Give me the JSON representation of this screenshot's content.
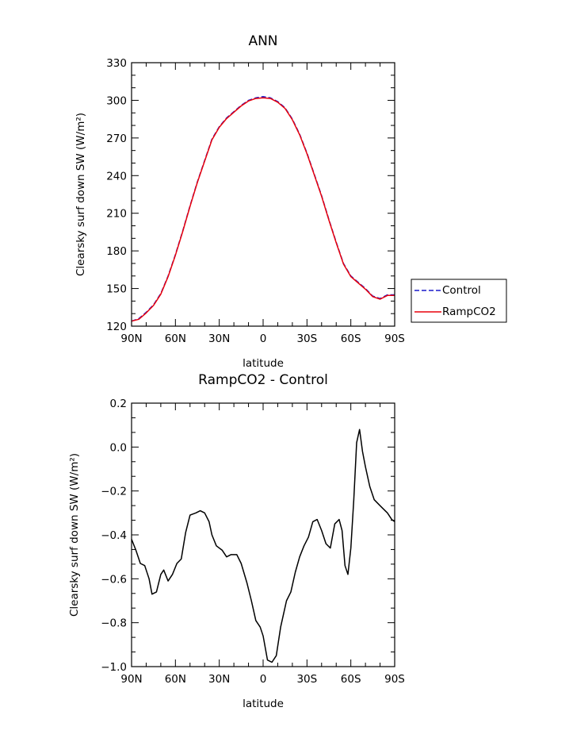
{
  "chart_data": [
    {
      "type": "line",
      "title": "ANN",
      "xlabel": "latitude",
      "ylabel": "Clearsky surf down SW (W/m²)",
      "xlim": [
        90,
        -90
      ],
      "ylim": [
        120,
        330
      ],
      "x_ticks": [
        90,
        60,
        30,
        0,
        -30,
        -60,
        -90
      ],
      "x_tick_labels": [
        "90N",
        "60N",
        "30N",
        "0",
        "30S",
        "60S",
        "90S"
      ],
      "y_ticks": [
        120,
        150,
        180,
        210,
        240,
        270,
        300,
        330
      ],
      "y_tick_labels": [
        "120",
        "150",
        "180",
        "210",
        "240",
        "270",
        "300",
        "330"
      ],
      "grid": false,
      "legend": "outside-right",
      "series": [
        {
          "name": "Control",
          "color": "#1a1acc",
          "dash": "dashed",
          "x": [
            90,
            85,
            80,
            75,
            70,
            65,
            60,
            55,
            50,
            45,
            40,
            35,
            30,
            25,
            20,
            15,
            10,
            5,
            0,
            -5,
            -10,
            -15,
            -20,
            -25,
            -30,
            -35,
            -40,
            -45,
            -50,
            -55,
            -60,
            -65,
            -70,
            -75,
            -80,
            -85,
            -90
          ],
          "values": [
            124,
            126,
            131,
            137,
            146,
            160,
            177,
            196,
            216,
            235,
            252,
            269,
            279,
            286,
            291,
            296,
            300,
            302,
            303,
            302,
            299,
            294,
            285,
            273,
            258,
            241,
            224,
            205,
            187,
            170,
            160,
            155,
            150,
            144,
            142,
            145,
            145
          ]
        },
        {
          "name": "RampCO2",
          "color": "#e8000b",
          "dash": "solid",
          "x": [
            90,
            85,
            80,
            75,
            70,
            65,
            60,
            55,
            50,
            45,
            40,
            35,
            30,
            25,
            20,
            15,
            10,
            5,
            0,
            -5,
            -10,
            -15,
            -20,
            -25,
            -30,
            -35,
            -40,
            -45,
            -50,
            -55,
            -60,
            -65,
            -70,
            -75,
            -80,
            -85,
            -90
          ],
          "values": [
            124,
            125.5,
            130.5,
            136.5,
            145.5,
            159.5,
            176.5,
            195.5,
            215.5,
            234.5,
            251.5,
            268.5,
            278.5,
            285.5,
            290.5,
            295.5,
            299.5,
            301.5,
            302,
            301.5,
            298.5,
            293.5,
            284.5,
            272.5,
            257.5,
            240.5,
            223.5,
            204.5,
            186.5,
            169.5,
            159.5,
            154.5,
            149.5,
            143.5,
            141.5,
            144.5,
            144.5
          ]
        }
      ]
    },
    {
      "type": "line",
      "title": "RampCO2 - Control",
      "xlabel": "latitude",
      "ylabel": "Clearsky surf down SW (W/m²)",
      "xlim": [
        90,
        -90
      ],
      "ylim": [
        -1.0,
        0.2
      ],
      "x_ticks": [
        90,
        60,
        30,
        0,
        -30,
        -60,
        -90
      ],
      "x_tick_labels": [
        "90N",
        "60N",
        "30N",
        "0",
        "30S",
        "60S",
        "90S"
      ],
      "y_ticks": [
        -1.0,
        -0.8,
        -0.6,
        -0.4,
        -0.2,
        0.0,
        0.2
      ],
      "y_tick_labels": [
        "−1.0",
        "−0.8",
        "−0.6",
        "−0.4",
        "−0.2",
        "0.0",
        "0.2"
      ],
      "grid": false,
      "series": [
        {
          "color": "#000000",
          "dash": "solid",
          "x": [
            90,
            87,
            84,
            81,
            78,
            76,
            73,
            70,
            68,
            65,
            62,
            59,
            56,
            53,
            50,
            46,
            43,
            40,
            37,
            35,
            32,
            28,
            25,
            22,
            18,
            15,
            11,
            8,
            5,
            2,
            0,
            -3,
            -6,
            -9,
            -12,
            -16,
            -19,
            -22,
            -25,
            -28,
            -31,
            -34,
            -37,
            -40,
            -43,
            -46,
            -49,
            -52,
            -54,
            -56,
            -58,
            -60,
            -62,
            -64,
            -66,
            -68,
            -70,
            -73,
            -76,
            -79,
            -82,
            -85,
            -88,
            -90
          ],
          "values": [
            -0.42,
            -0.47,
            -0.53,
            -0.54,
            -0.6,
            -0.67,
            -0.66,
            -0.58,
            -0.56,
            -0.61,
            -0.58,
            -0.53,
            -0.51,
            -0.39,
            -0.31,
            -0.3,
            -0.29,
            -0.3,
            -0.34,
            -0.4,
            -0.45,
            -0.47,
            -0.5,
            -0.49,
            -0.49,
            -0.53,
            -0.62,
            -0.7,
            -0.79,
            -0.82,
            -0.86,
            -0.97,
            -0.98,
            -0.95,
            -0.82,
            -0.7,
            -0.66,
            -0.57,
            -0.5,
            -0.45,
            -0.41,
            -0.34,
            -0.33,
            -0.38,
            -0.44,
            -0.46,
            -0.35,
            -0.33,
            -0.38,
            -0.54,
            -0.58,
            -0.46,
            -0.24,
            0.02,
            0.08,
            -0.02,
            -0.09,
            -0.18,
            -0.24,
            -0.26,
            -0.28,
            -0.3,
            -0.33,
            -0.34
          ]
        }
      ]
    }
  ]
}
